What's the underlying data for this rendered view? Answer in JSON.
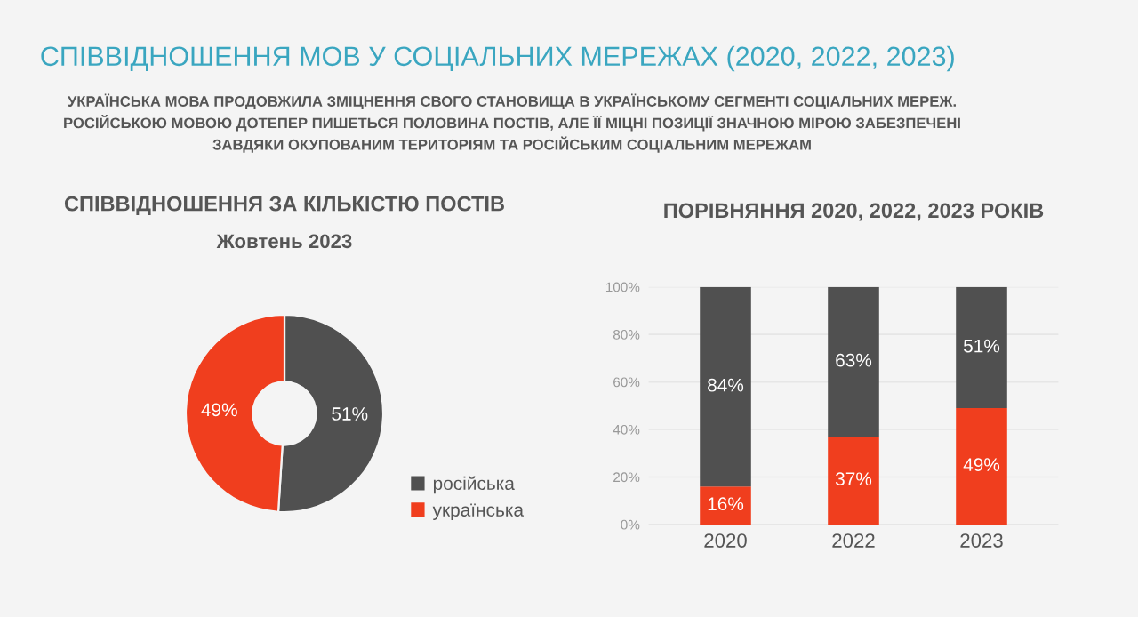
{
  "chart_data": [
    {
      "type": "donut",
      "title": "СПІВВІДНОШЕННЯ ЗА КІЛЬКІСТЮ ПОСТІВ",
      "subtitle": "Жовтень 2023",
      "annotations": [
        "СПІВВІДНОШЕННЯ МОВ У СОЦІАЛЬНИХ МЕРЕЖАХ (2020, 2022, 2023)",
        "УКРАЇНСЬКА МОВА ПРОДОВЖИЛА ЗМІЦНЕННЯ СВОГО СТАНОВИЩА В УКРАЇНСЬКОМУ СЕГМЕНТІ СОЦІАЛЬНИХ МЕРЕЖ.\nРОСІЙСЬКОЮ МОВОЮ ДОТЕПЕР ПИШЕТЬСЯ ПОЛОВИНА ПОСТІВ, АЛЕ ЇЇ МІЦНІ ПОЗИЦІЇ ЗНАЧНОЮ МІРОЮ ЗАБЕЗПЕЧЕНІ\nЗАВДЯКИ ОКУПОВАНИМ ТЕРИТОРІЯМ ТА РОСІЙСЬКИМ СОЦІАЛЬНИМ МЕРЕЖАМ"
      ],
      "categories": [
        "російська",
        "українська"
      ],
      "values": [
        51,
        49
      ],
      "colors": [
        "#505050",
        "#f03e1e"
      ],
      "value_labels": [
        "51%",
        "49%"
      ],
      "legend": "bottom right"
    },
    {
      "type": "bar",
      "title": "ПОРІВНЯННЯ 2020, 2022, 2023 РОКІВ",
      "categories": [
        "2020",
        "2022",
        "2023"
      ],
      "stacked": true,
      "series": [
        {
          "color": "#f03e1e",
          "values": [
            16,
            37,
            49
          ],
          "value_labels": [
            "16%",
            "37%",
            "49%"
          ]
        },
        {
          "color": "#505050",
          "values": [
            84,
            63,
            51
          ],
          "value_labels": [
            "84%",
            "63%",
            "51%"
          ]
        }
      ],
      "ylim": [
        0,
        100
      ],
      "yticks": [
        {
          "value": 0,
          "label": "0%"
        },
        {
          "value": 20,
          "label": "20%"
        },
        {
          "value": 40,
          "label": "40%"
        },
        {
          "value": 60,
          "label": "60%"
        },
        {
          "value": 80,
          "label": "80%"
        },
        {
          "value": 100,
          "label": "100%"
        }
      ],
      "grid": "y"
    }
  ]
}
